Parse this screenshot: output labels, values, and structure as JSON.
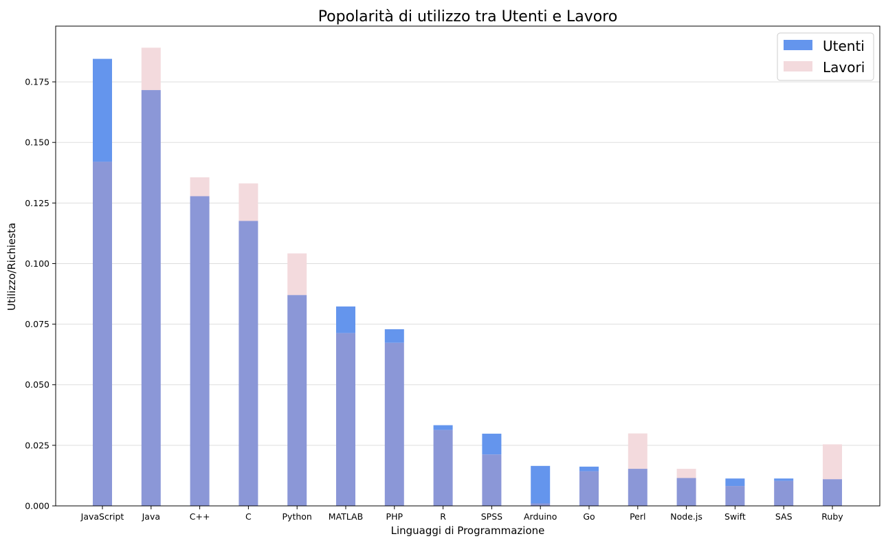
{
  "chart_data": {
    "type": "bar",
    "title": "Popolarità di utilizzo tra Utenti e Lavoro",
    "xlabel": "Linguaggi di Programmazione",
    "ylabel": "Utilizzo/Richiesta",
    "categories": [
      "JavaScript",
      "Java",
      "C++",
      "C",
      "Python",
      "MATLAB",
      "PHP",
      "R",
      "SPSS",
      "Arduino",
      "Go",
      "Perl",
      "Node.js",
      "Swift",
      "SAS",
      "Ruby"
    ],
    "series": [
      {
        "name": "Utenti",
        "color": "#6495ED",
        "values": [
          0.1845,
          0.1716,
          0.1278,
          0.1176,
          0.087,
          0.0823,
          0.0729,
          0.0333,
          0.0298,
          0.0165,
          0.0162,
          0.0153,
          0.0115,
          0.0113,
          0.0113,
          0.011
        ]
      },
      {
        "name": "Lavori",
        "color": "#F3DADD",
        "values": [
          0.142,
          0.1891,
          0.1356,
          0.1331,
          0.1042,
          0.0713,
          0.0673,
          0.0313,
          0.0212,
          0.001,
          0.0143,
          0.0299,
          0.0153,
          0.0082,
          0.0103,
          0.0254
        ]
      }
    ],
    "overlap_color": "#8B97D7",
    "ylim": [
      0,
      0.198
    ],
    "yticks": [
      "0.000",
      "0.025",
      "0.050",
      "0.075",
      "0.100",
      "0.125",
      "0.150",
      "0.175"
    ],
    "grid": "horizontal",
    "legend_position": "top-right"
  }
}
